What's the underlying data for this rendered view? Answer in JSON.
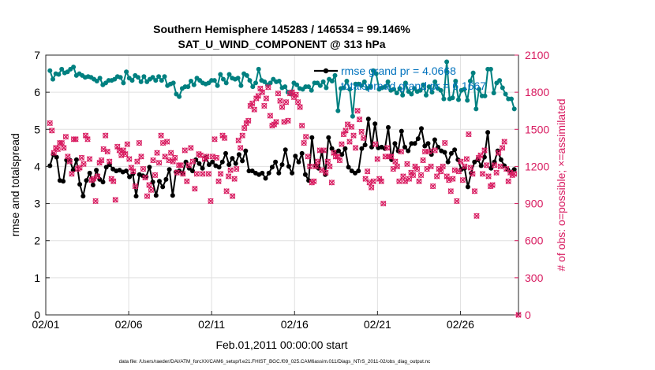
{
  "chart_data": {
    "type": "line",
    "title_line1": "Southern Hemisphere 145283 / 146534 = 99.146%",
    "title_line2": "SAT_U_WIND_COMPONENT @ 313 hPa",
    "xlabel": "Feb.01,2011 00:00:00 start",
    "ylabel_left": "rmse and totalspread",
    "ylabel_right": "# of obs: o=possible; ×=assimilated",
    "footer": "data file: /Users/raeder/DAI/ATM_forcXX/CAM6_setup/f.e21.FHIST_BGC.f09_025.CAM6assim.011/Diags_NTrS_2011-02/obs_diag_output.nc",
    "xlim": [
      0,
      28.5
    ],
    "ylim_left": [
      0,
      7
    ],
    "ylim_right": [
      0,
      2100
    ],
    "x_ticks": [
      0,
      5,
      10,
      15,
      20,
      25
    ],
    "x_tick_labels": [
      "02/01",
      "02/06",
      "02/11",
      "02/16",
      "02/21",
      "02/26"
    ],
    "y_left_ticks": [
      0,
      1,
      2,
      3,
      4,
      5,
      6,
      7
    ],
    "y_right_ticks": [
      0,
      300,
      600,
      900,
      1200,
      1500,
      1800,
      2100
    ],
    "legend": [
      {
        "label": "rmse grand pr = 4.0668",
        "color": "#000000"
      },
      {
        "label": "totalspread grand pr = 6.1667",
        "color": "#0072bd"
      }
    ],
    "colors": {
      "rmse": "#000000",
      "spread": "#008080",
      "obs": "#d81b60",
      "legend_text": "#0072bd",
      "grid": "#e0e0e0"
    },
    "series_rmse": [
      4.02,
      4.32,
      4.25,
      3.62,
      3.6,
      4.17,
      4.17,
      3.9,
      4.18,
      3.52,
      3.2,
      3.62,
      3.82,
      3.5,
      3.9,
      3.65,
      3.58,
      3.98,
      4.05,
      3.93,
      3.88,
      3.9,
      3.85,
      3.88,
      3.72,
      3.8,
      3.2,
      3.78,
      3.75,
      3.72,
      3.98,
      3.58,
      3.22,
      3.6,
      3.45,
      3.65,
      3.92,
      3.22,
      3.85,
      3.88,
      3.82,
      4.12,
      3.95,
      3.88,
      4.18,
      4.08,
      3.95,
      4.25,
      4.05,
      4.12,
      4.02,
      3.98,
      4.12,
      4.35,
      4.05,
      4.22,
      4.08,
      4.32,
      4.15,
      4.42,
      3.88,
      3.88,
      3.82,
      3.78,
      3.82,
      3.68,
      3.82,
      3.98,
      4.12,
      3.82,
      4.05,
      4.45,
      4.0,
      3.82,
      4.28,
      4.12,
      4.35,
      3.78,
      3.62,
      4.78,
      4.02,
      3.95,
      4.42,
      3.78,
      4.78,
      4.48,
      4.38,
      4.42,
      4.32,
      4.48,
      3.98,
      3.88,
      3.82,
      3.88,
      4.48,
      4.58,
      5.28,
      4.52,
      5.15,
      4.5,
      4.52,
      4.48,
      5.05,
      4.18,
      4.62,
      4.42,
      4.95,
      4.52,
      4.42,
      4.62,
      4.62,
      4.75,
      5.02,
      4.55,
      4.62,
      4.32,
      4.72,
      4.52,
      4.42,
      4.38,
      4.12,
      4.35,
      4.45,
      4.18,
      3.92,
      3.95,
      3.45,
      3.82,
      4.12,
      4.18,
      4.02,
      4.25,
      4.92,
      3.95,
      4.12,
      4.42,
      4.18,
      4.02,
      3.92,
      3.85,
      3.92
    ],
    "series_spread": [
      6.58,
      6.35,
      6.5,
      6.48,
      6.62,
      6.52,
      6.55,
      6.62,
      6.68,
      6.45,
      6.5,
      6.45,
      6.4,
      6.42,
      6.4,
      6.35,
      6.3,
      6.38,
      6.2,
      6.25,
      6.32,
      6.32,
      6.35,
      6.42,
      6.4,
      6.25,
      6.55,
      6.38,
      6.32,
      6.45,
      6.4,
      6.28,
      6.42,
      6.28,
      6.35,
      6.4,
      6.32,
      6.42,
      6.32,
      6.42,
      6.18,
      6.22,
      6.25,
      5.95,
      5.88,
      6.1,
      6.15,
      6.15,
      6.3,
      6.2,
      6.38,
      6.32,
      6.25,
      6.22,
      6.25,
      6.32,
      6.32,
      6.18,
      6.48,
      6.35,
      6.25,
      6.48,
      6.38,
      6.35,
      6.38,
      6.18,
      6.5,
      6.45,
      6.32,
      6.15,
      6.25,
      6.62,
      6.32,
      6.28,
      6.2,
      6.25,
      6.35,
      6.28,
      6.3,
      6.12,
      6.15,
      6.0,
      5.95,
      6.25,
      6.2,
      6.1,
      6.08,
      6.15,
      6.15,
      6.05,
      6.25,
      6.25,
      6.18,
      6.28,
      6.12,
      6.35,
      6.3,
      6.45,
      5.5,
      6.1,
      6.12,
      6.3,
      6.08,
      5.35,
      6.22,
      6.22,
      6.18,
      6.28,
      6.1,
      6.15,
      6.58,
      6.5,
      6.08,
      6.12,
      6.15,
      6.28,
      6.05,
      6.08,
      5.98,
      6.1,
      5.92,
      6.25,
      6.02,
      5.95,
      6.1,
      6.02,
      6.05,
      6.2,
      5.92,
      6.15,
      6.0,
      6.28,
      6.1,
      6.05,
      5.82,
      6.82,
      5.82,
      5.85,
      6.3,
      5.8,
      6.05,
      6.08,
      5.78,
      6.3,
      6.52,
      5.55,
      6.08,
      5.9,
      5.9,
      6.62,
      6.62,
      5.98,
      6.25,
      6.32,
      6.12,
      5.95,
      5.82,
      5.82,
      5.55
    ],
    "series_obs": [
      1550,
      1490,
      1310,
      1350,
      1340,
      1390,
      1390,
      1350,
      1440,
      1280,
      1240,
      1140,
      1420,
      1420,
      1180,
      1190,
      1270,
      1220,
      1450,
      1420,
      1260,
      1090,
      1100,
      920,
      1120,
      1230,
      1250,
      1340,
      1450,
      1320,
      1240,
      1100,
      1080,
      930,
      1360,
      1330,
      1290,
      1330,
      1300,
      1380,
      1260,
      1190,
      1160,
      1040,
      1240,
      1390,
      1280,
      1180,
      1110,
      960,
      1050,
      1010,
      1250,
      1130,
      1310,
      1230,
      1450,
      1390,
      1280,
      1400,
      1250,
      1310,
      1240,
      1270,
      1150,
      1210,
      1210,
      1140,
      1330,
      1080,
      1210,
      1350,
      1240,
      1020,
      1140,
      1300,
      1290,
      1140,
      1260,
      1280,
      1140,
      920,
      1280,
      1420,
      1270,
      1080,
      1140,
      1450,
      1430,
      1000,
      1120,
      1170,
      960,
      1100,
      1180,
      1410,
      1350,
      1450,
      1510,
      1550,
      1570,
      1690,
      1710,
      1660,
      1750,
      1770,
      1830,
      1800,
      1690,
      1750,
      1840,
      1610,
      1530,
      1540,
      1560,
      1790,
      1730,
      1680,
      1560,
      1720,
      1570,
      1790,
      1800,
      1760,
      1780,
      1720,
      1680,
      1530,
      1390,
      1440,
      1280,
      1200,
      1070,
      1080,
      1200,
      1240,
      1330,
      1170,
      1330,
      1150,
      1240,
      1200,
      1070,
      1310,
      1280,
      1280,
      1250,
      1380,
      1460,
      1490,
      1540,
      1400,
      1520,
      1450,
      1350,
      1650,
      1580,
      1480,
      1430,
      1100,
      1160,
      1070,
      1030,
      1080,
      1380,
      1260,
      1100,
      1080,
      900,
      1280,
      1350,
      1280,
      1280,
      1180,
      1240,
      1200,
      1080,
      1320,
      1120,
      1080,
      1220,
      1100,
      1150,
      1130,
      1200,
      1180,
      1080,
      1130,
      1250,
      1320,
      1180,
      1320,
      1200,
      1040,
      1330,
      1120,
      1180,
      1160,
      1200,
      1390,
      1120,
      1090,
      1000,
      1100,
      1170,
      920,
      1160,
      1240,
      1090,
      1200,
      1260,
      1460,
      1190,
      1140,
      1000,
      800,
      1270,
      1290,
      1140,
      1330,
      1210,
      1120,
      1040,
      1050,
      1210,
      1150,
      1310,
      1200,
      1350,
      1400,
      1180,
      1080,
      1150,
      1130,
      1140,
      0
    ]
  }
}
